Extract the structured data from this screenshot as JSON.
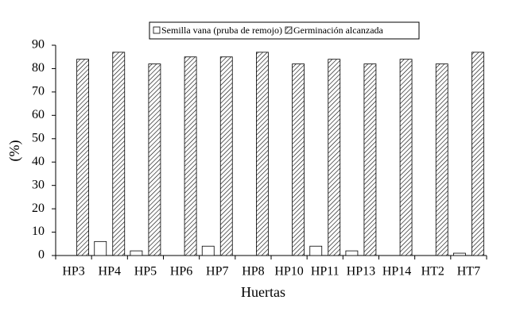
{
  "chart_data": {
    "type": "bar",
    "x_label": "Huertas",
    "y_label": "(%)",
    "categories": [
      "HP3",
      "HP4",
      "HP5",
      "HP6",
      "HP7",
      "HP8",
      "HP10",
      "HP11",
      "HP13",
      "HP14",
      "HT2",
      "HT7"
    ],
    "series": [
      {
        "name": "Semilla vana (pruba de remojo)",
        "color": "#ffffff",
        "pattern": "none",
        "values": [
          0,
          6,
          2,
          0,
          4,
          0,
          0,
          4,
          2,
          0,
          0,
          1
        ]
      },
      {
        "name": "Germinación alcanzada",
        "color": "#ffffff",
        "pattern": "hatch",
        "values": [
          84,
          87,
          82,
          85,
          85,
          87,
          82,
          84,
          82,
          84,
          82,
          87
        ]
      }
    ],
    "ylim": [
      0,
      90
    ],
    "yticks": [
      0,
      10,
      20,
      30,
      40,
      50,
      60,
      70,
      80,
      90
    ],
    "grid": false,
    "legend": "top"
  }
}
